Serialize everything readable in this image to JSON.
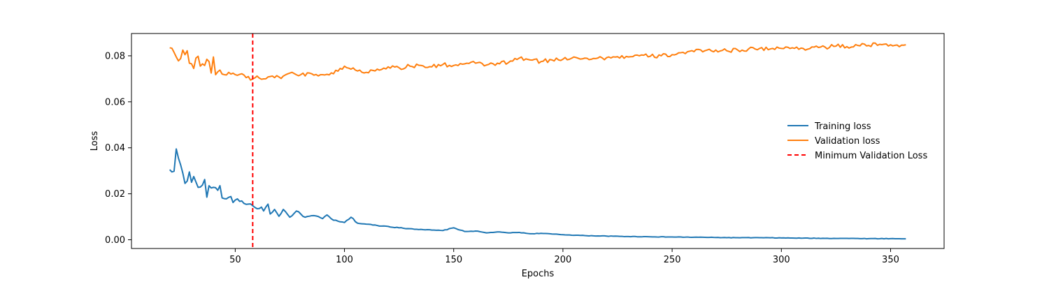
{
  "chart_data": {
    "type": "line",
    "title": "",
    "xlabel": "Epochs",
    "ylabel": "Loss",
    "xlim": [
      2.5,
      374.5
    ],
    "ylim": [
      -0.0038,
      0.0897
    ],
    "x_ticks": [
      50,
      100,
      150,
      200,
      250,
      300,
      350
    ],
    "x_tick_labels": [
      "50",
      "100",
      "150",
      "200",
      "250",
      "300",
      "350"
    ],
    "y_ticks": [
      0.0,
      0.02,
      0.04,
      0.06,
      0.08
    ],
    "y_tick_labels": [
      "0.00",
      "0.02",
      "0.04",
      "0.06",
      "0.08"
    ],
    "grid": false,
    "legend_position": "center-right",
    "x_start": 20,
    "x_end": 357,
    "series": [
      {
        "name": "Training loss",
        "color": "#1f77b4",
        "style": "solid",
        "anchors": [
          [
            20,
            0.0305
          ],
          [
            21,
            0.0295
          ],
          [
            22,
            0.0298
          ],
          [
            23,
            0.0395
          ],
          [
            24,
            0.0355
          ],
          [
            26,
            0.029
          ],
          [
            27,
            0.0245
          ],
          [
            28,
            0.0255
          ],
          [
            29,
            0.0295
          ],
          [
            30,
            0.025
          ],
          [
            31,
            0.0275
          ],
          [
            33,
            0.0228
          ],
          [
            35,
            0.0238
          ],
          [
            36,
            0.0262
          ],
          [
            37,
            0.0185
          ],
          [
            38,
            0.0235
          ],
          [
            40,
            0.0228
          ],
          [
            42,
            0.0215
          ],
          [
            43,
            0.0235
          ],
          [
            44,
            0.0182
          ],
          [
            46,
            0.0178
          ],
          [
            48,
            0.0188
          ],
          [
            49,
            0.0162
          ],
          [
            51,
            0.0178
          ],
          [
            54,
            0.0158
          ],
          [
            56,
            0.0155
          ],
          [
            58,
            0.0148
          ],
          [
            60,
            0.0135
          ],
          [
            62,
            0.0142
          ],
          [
            63,
            0.0125
          ],
          [
            65,
            0.0155
          ],
          [
            66,
            0.0112
          ],
          [
            68,
            0.0132
          ],
          [
            70,
            0.0102
          ],
          [
            72,
            0.0132
          ],
          [
            75,
            0.0098
          ],
          [
            78,
            0.0125
          ],
          [
            82,
            0.0098
          ],
          [
            86,
            0.0105
          ],
          [
            90,
            0.0092
          ],
          [
            92,
            0.0108
          ],
          [
            95,
            0.0085
          ],
          [
            98,
            0.0078
          ],
          [
            100,
            0.0075
          ],
          [
            103,
            0.0098
          ],
          [
            106,
            0.0072
          ],
          [
            110,
            0.0068
          ],
          [
            115,
            0.0062
          ],
          [
            120,
            0.0058
          ],
          [
            125,
            0.0052
          ],
          [
            130,
            0.0048
          ],
          [
            135,
            0.0045
          ],
          [
            140,
            0.0042
          ],
          [
            145,
            0.004
          ],
          [
            150,
            0.0052
          ],
          [
            155,
            0.0036
          ],
          [
            160,
            0.0038
          ],
          [
            165,
            0.003
          ],
          [
            170,
            0.0034
          ],
          [
            175,
            0.003
          ],
          [
            180,
            0.0032
          ],
          [
            185,
            0.0026
          ],
          [
            190,
            0.0028
          ],
          [
            200,
            0.0022
          ],
          [
            210,
            0.0018
          ],
          [
            220,
            0.0016
          ],
          [
            230,
            0.0014
          ],
          [
            240,
            0.0013
          ],
          [
            250,
            0.0012
          ],
          [
            260,
            0.0011
          ],
          [
            270,
            0.001
          ],
          [
            280,
            0.0009
          ],
          [
            290,
            0.0009
          ],
          [
            300,
            0.0008
          ],
          [
            310,
            0.0007
          ],
          [
            320,
            0.0006
          ],
          [
            330,
            0.0006
          ],
          [
            340,
            0.0005
          ],
          [
            350,
            0.0005
          ],
          [
            357,
            0.0004
          ]
        ],
        "noise": 0.0012
      },
      {
        "name": "Validation loss",
        "color": "#ff7f0e",
        "style": "solid",
        "anchors": [
          [
            20,
            0.0835
          ],
          [
            21,
            0.0833
          ],
          [
            22,
            0.0815
          ],
          [
            23,
            0.0795
          ],
          [
            24,
            0.0778
          ],
          [
            25,
            0.0788
          ],
          [
            26,
            0.0825
          ],
          [
            27,
            0.0805
          ],
          [
            28,
            0.0822
          ],
          [
            29,
            0.0768
          ],
          [
            30,
            0.0765
          ],
          [
            31,
            0.0745
          ],
          [
            32,
            0.079
          ],
          [
            33,
            0.0798
          ],
          [
            34,
            0.0755
          ],
          [
            35,
            0.0765
          ],
          [
            36,
            0.0758
          ],
          [
            37,
            0.0785
          ],
          [
            38,
            0.0775
          ],
          [
            39,
            0.0725
          ],
          [
            40,
            0.0795
          ],
          [
            41,
            0.0718
          ],
          [
            43,
            0.0738
          ],
          [
            45,
            0.0718
          ],
          [
            47,
            0.0728
          ],
          [
            50,
            0.0718
          ],
          [
            53,
            0.0722
          ],
          [
            55,
            0.0705
          ],
          [
            58,
            0.07
          ],
          [
            60,
            0.0712
          ],
          [
            62,
            0.0698
          ],
          [
            65,
            0.0708
          ],
          [
            68,
            0.0705
          ],
          [
            72,
            0.0712
          ],
          [
            75,
            0.0725
          ],
          [
            80,
            0.0718
          ],
          [
            85,
            0.0722
          ],
          [
            90,
            0.0718
          ],
          [
            95,
            0.0722
          ],
          [
            98,
            0.0745
          ],
          [
            100,
            0.0755
          ],
          [
            103,
            0.0742
          ],
          [
            105,
            0.0738
          ],
          [
            110,
            0.0728
          ],
          [
            115,
            0.0742
          ],
          [
            120,
            0.0752
          ],
          [
            125,
            0.0748
          ],
          [
            130,
            0.0755
          ],
          [
            135,
            0.0758
          ],
          [
            140,
            0.0752
          ],
          [
            145,
            0.0762
          ],
          [
            150,
            0.0758
          ],
          [
            155,
            0.0765
          ],
          [
            160,
            0.0768
          ],
          [
            165,
            0.076
          ],
          [
            170,
            0.0768
          ],
          [
            175,
            0.077
          ],
          [
            180,
            0.079
          ],
          [
            185,
            0.0782
          ],
          [
            190,
            0.0775
          ],
          [
            195,
            0.0782
          ],
          [
            200,
            0.0785
          ],
          [
            205,
            0.0795
          ],
          [
            210,
            0.079
          ],
          [
            215,
            0.0788
          ],
          [
            220,
            0.0792
          ],
          [
            225,
            0.0796
          ],
          [
            230,
            0.0795
          ],
          [
            235,
            0.08
          ],
          [
            240,
            0.0798
          ],
          [
            245,
            0.08
          ],
          [
            250,
            0.0805
          ],
          [
            255,
            0.0815
          ],
          [
            260,
            0.0818
          ],
          [
            265,
            0.0822
          ],
          [
            270,
            0.0825
          ],
          [
            275,
            0.0822
          ],
          [
            280,
            0.0825
          ],
          [
            285,
            0.083
          ],
          [
            290,
            0.0832
          ],
          [
            295,
            0.083
          ],
          [
            300,
            0.0832
          ],
          [
            305,
            0.0835
          ],
          [
            310,
            0.0832
          ],
          [
            315,
            0.0838
          ],
          [
            320,
            0.0838
          ],
          [
            325,
            0.0842
          ],
          [
            330,
            0.084
          ],
          [
            335,
            0.0845
          ],
          [
            340,
            0.0845
          ],
          [
            345,
            0.085
          ],
          [
            350,
            0.0848
          ],
          [
            357,
            0.0848
          ]
        ],
        "noise": 0.0018
      }
    ],
    "vline": {
      "name": "Minimum Validation Loss",
      "x": 58,
      "color": "#ff0000",
      "style": "dashed"
    }
  }
}
